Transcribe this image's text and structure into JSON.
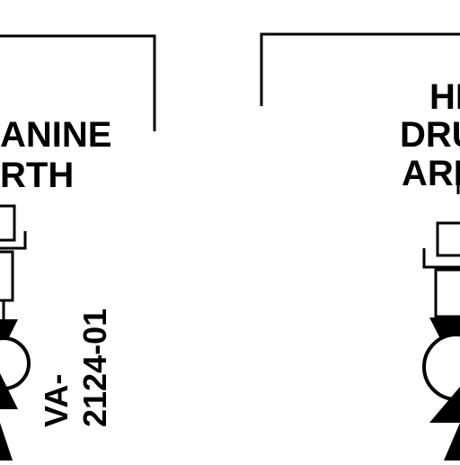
{
  "colors": {
    "ink": "#000000",
    "paper": "#ffffff"
  },
  "left_panel": {
    "label_line1": "ANINE",
    "label_line2": "RTH",
    "valve_tag_line1": "VA-",
    "valve_tag_line2": "2124-01"
  },
  "right_panel": {
    "label_line1": "HI",
    "label_line2": "DRU",
    "label_line3": "ARI"
  }
}
